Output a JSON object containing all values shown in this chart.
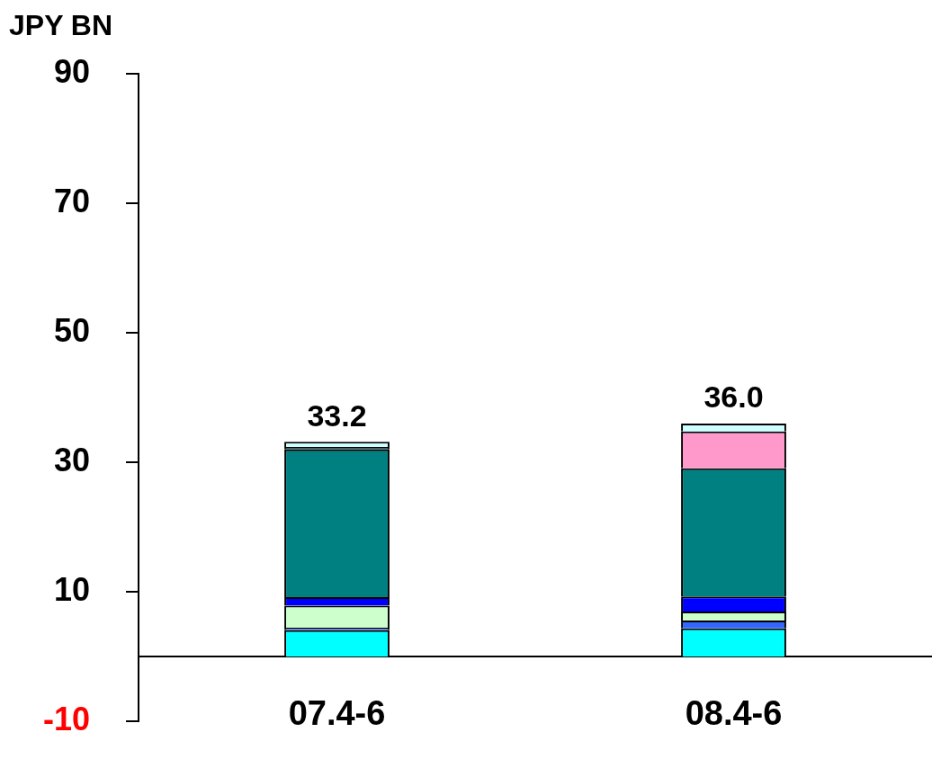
{
  "chart_data": {
    "type": "bar",
    "ylabel": "JPY BN",
    "categories": [
      "07.4-6",
      "08.4-6"
    ],
    "stacked": true,
    "series": [
      {
        "color": "#00ffff",
        "values": [
          4.1,
          4.4
        ]
      },
      {
        "color": "#3366ff",
        "values": [
          0.4,
          1.2
        ]
      },
      {
        "color": "#ccffcc",
        "values": [
          3.4,
          1.4
        ]
      },
      {
        "color": "#0000ff",
        "values": [
          1.3,
          2.3
        ]
      },
      {
        "color": "#008080",
        "values": [
          22.8,
          19.8
        ]
      },
      {
        "color": "#003333",
        "values": [
          0.4,
          null
        ]
      },
      {
        "color": "#ff99cc",
        "values": [
          null,
          5.7
        ]
      },
      {
        "color": "#ccffff",
        "values": [
          0.8,
          1.2
        ]
      }
    ],
    "totals": [
      "33.2",
      "36.0"
    ],
    "ylim": [
      -10,
      90
    ],
    "yticks": [
      -10,
      10,
      30,
      50,
      70,
      90
    ],
    "grid": false,
    "legend": false
  }
}
